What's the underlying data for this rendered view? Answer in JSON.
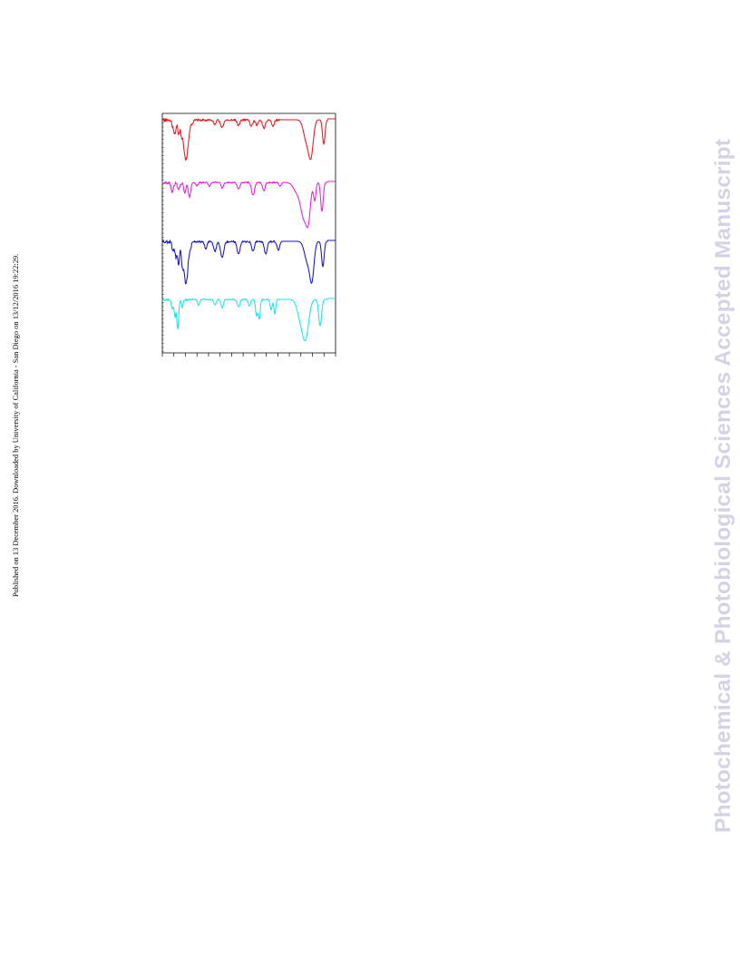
{
  "side_note": "Published on 13 December 2016. Downloaded by University of California - San Diego on 13/12/2016 19:22:29.",
  "watermark": "Photochemical & Photobiological Sciences Accepted Manuscript",
  "figure": {
    "traces": [
      {
        "color": "#e8141c"
      },
      {
        "color": "#e21ce2"
      },
      {
        "color": "#1414c8"
      },
      {
        "color": "#16e6e6"
      }
    ]
  }
}
